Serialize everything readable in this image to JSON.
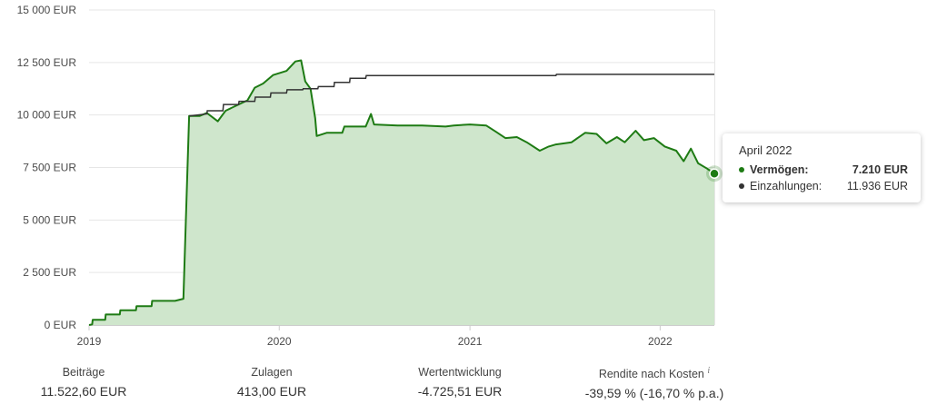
{
  "colors": {
    "assets_line": "#1e7b14",
    "assets_fill": "#cfe6cc",
    "payments_line": "#333333",
    "grid": "#e6e6e6",
    "axis": "#cccccc"
  },
  "chart_data": {
    "type": "area",
    "x_type": "datetime",
    "x_ticks": [
      "2019",
      "2020",
      "2021",
      "2022"
    ],
    "y_ticks": [
      "0 EUR",
      "2 500 EUR",
      "5 000 EUR",
      "7 500 EUR",
      "10 000 EUR",
      "12 500 EUR",
      "15 000 EUR"
    ],
    "ylim": [
      0,
      15000
    ],
    "grid": true,
    "series": [
      {
        "name": "Vermögen",
        "type": "area",
        "points": [
          [
            "2019-01-01",
            0
          ],
          [
            "2019-01-07",
            30
          ],
          [
            "2019-01-08",
            250
          ],
          [
            "2019-02-01",
            250
          ],
          [
            "2019-02-02",
            500
          ],
          [
            "2019-03-01",
            500
          ],
          [
            "2019-03-02",
            700
          ],
          [
            "2019-04-01",
            700
          ],
          [
            "2019-04-02",
            900
          ],
          [
            "2019-05-01",
            900
          ],
          [
            "2019-05-02",
            1150
          ],
          [
            "2019-06-15",
            1150
          ],
          [
            "2019-07-01",
            1250
          ],
          [
            "2019-07-12",
            9950
          ],
          [
            "2019-08-01",
            9950
          ],
          [
            "2019-08-15",
            10100
          ],
          [
            "2019-09-05",
            9700
          ],
          [
            "2019-09-20",
            10200
          ],
          [
            "2019-10-15",
            10500
          ],
          [
            "2019-11-01",
            10700
          ],
          [
            "2019-11-15",
            11300
          ],
          [
            "2019-12-01",
            11500
          ],
          [
            "2019-12-20",
            11900
          ],
          [
            "2020-01-15",
            12100
          ],
          [
            "2020-02-01",
            12550
          ],
          [
            "2020-02-12",
            12600
          ],
          [
            "2020-02-20",
            11600
          ],
          [
            "2020-03-01",
            11250
          ],
          [
            "2020-03-10",
            9850
          ],
          [
            "2020-03-13",
            9000
          ],
          [
            "2020-04-01",
            9150
          ],
          [
            "2020-05-01",
            9150
          ],
          [
            "2020-05-05",
            9450
          ],
          [
            "2020-06-15",
            9450
          ],
          [
            "2020-06-25",
            10050
          ],
          [
            "2020-07-01",
            9550
          ],
          [
            "2020-08-15",
            9500
          ],
          [
            "2020-10-01",
            9500
          ],
          [
            "2020-11-15",
            9450
          ],
          [
            "2020-12-01",
            9500
          ],
          [
            "2021-01-01",
            9550
          ],
          [
            "2021-02-01",
            9500
          ],
          [
            "2021-02-20",
            9200
          ],
          [
            "2021-03-10",
            8900
          ],
          [
            "2021-04-01",
            8950
          ],
          [
            "2021-04-20",
            8700
          ],
          [
            "2021-05-15",
            8300
          ],
          [
            "2021-06-01",
            8500
          ],
          [
            "2021-06-15",
            8600
          ],
          [
            "2021-07-15",
            8700
          ],
          [
            "2021-08-10",
            9150
          ],
          [
            "2021-09-01",
            9100
          ],
          [
            "2021-09-20",
            8650
          ],
          [
            "2021-10-10",
            8950
          ],
          [
            "2021-10-25",
            8700
          ],
          [
            "2021-11-15",
            9250
          ],
          [
            "2021-12-01",
            8800
          ],
          [
            "2021-12-20",
            8900
          ],
          [
            "2022-01-10",
            8500
          ],
          [
            "2022-02-01",
            8300
          ],
          [
            "2022-02-15",
            7800
          ],
          [
            "2022-03-01",
            8400
          ],
          [
            "2022-03-15",
            7700
          ],
          [
            "2022-04-01",
            7450
          ],
          [
            "2022-04-15",
            7210
          ]
        ]
      },
      {
        "name": "Einzahlungen",
        "type": "line",
        "points": [
          [
            "2019-07-12",
            9950
          ],
          [
            "2019-08-15",
            10050
          ],
          [
            "2019-08-16",
            10200
          ],
          [
            "2019-09-15",
            10200
          ],
          [
            "2019-09-16",
            10500
          ],
          [
            "2019-10-15",
            10500
          ],
          [
            "2019-10-16",
            10650
          ],
          [
            "2019-11-15",
            10650
          ],
          [
            "2019-11-16",
            10850
          ],
          [
            "2019-12-15",
            10850
          ],
          [
            "2019-12-16",
            11050
          ],
          [
            "2020-01-15",
            11050
          ],
          [
            "2020-01-16",
            11200
          ],
          [
            "2020-02-15",
            11200
          ],
          [
            "2020-02-16",
            11250
          ],
          [
            "2020-03-15",
            11250
          ],
          [
            "2020-03-16",
            11350
          ],
          [
            "2020-04-15",
            11350
          ],
          [
            "2020-04-16",
            11550
          ],
          [
            "2020-05-15",
            11550
          ],
          [
            "2020-05-16",
            11750
          ],
          [
            "2020-06-15",
            11750
          ],
          [
            "2020-06-16",
            11880
          ],
          [
            "2021-06-15",
            11880
          ],
          [
            "2021-06-16",
            11936
          ],
          [
            "2022-04-15",
            11936
          ]
        ]
      }
    ]
  },
  "tooltip": {
    "title": "April 2022",
    "row1_label": "Vermögen:",
    "row1_value": "7.210 EUR",
    "row2_label": "Einzahlungen:",
    "row2_value": "11.936 EUR"
  },
  "stats": [
    {
      "label": "Beiträge",
      "value": "11.522,60 EUR"
    },
    {
      "label": "Zulagen",
      "value": "413,00 EUR"
    },
    {
      "label": "Wertentwicklung",
      "value": "-4.725,51 EUR"
    },
    {
      "label": "Rendite nach Kosten",
      "value": "-39,59 % (-16,70 % p.a.)",
      "info_icon": "i"
    }
  ]
}
